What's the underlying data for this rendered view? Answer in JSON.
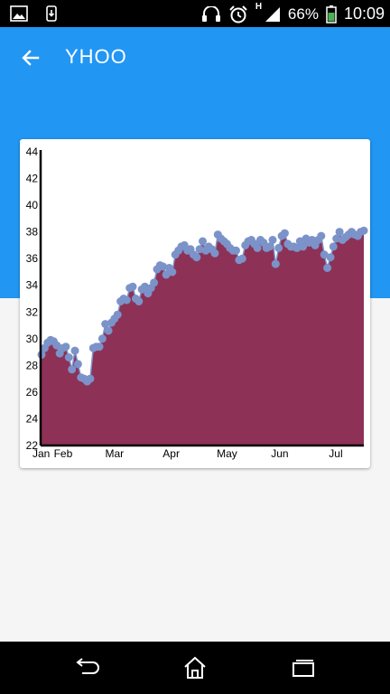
{
  "status": {
    "battery": "66%",
    "time": "10:09",
    "network_type": "H",
    "icons": [
      "picture-notification-icon",
      "download-notification-icon",
      "headset-icon",
      "alarm-icon",
      "signal-icon",
      "battery-icon"
    ]
  },
  "toolbar": {
    "title": "YHOO",
    "back_icon": "arrow-left-icon"
  },
  "colors": {
    "primary": "#2196f3",
    "area_fill": "#8e3156",
    "point_color": "#7b93c9",
    "status_bar": "#000000"
  },
  "chart_data": {
    "type": "area",
    "title": "",
    "xlabel": "",
    "ylabel": "",
    "ylim": [
      22,
      44
    ],
    "y_ticks": [
      22,
      24,
      26,
      28,
      30,
      32,
      34,
      36,
      38,
      40,
      42,
      44
    ],
    "x_tick_labels": [
      "Jan",
      "Feb",
      "Mar",
      "Apr",
      "May",
      "Jun",
      "Jul"
    ],
    "grid": false,
    "series": [
      {
        "values": [
          28.8,
          29.3,
          29.7,
          29.9,
          29.8,
          29.5,
          28.9,
          29.3,
          29.4,
          28.6,
          27.7,
          29.1,
          28.1,
          27.1,
          27.0,
          26.8,
          27.0,
          29.3,
          29.4,
          29.4,
          30.0,
          31.1,
          30.6,
          31.2,
          31.5,
          31.8,
          32.8,
          33.0,
          32.9,
          33.8,
          33.9,
          33.0,
          32.8,
          33.7,
          33.9,
          33.4,
          33.8,
          34.2,
          35.2,
          35.5,
          35.4,
          34.8,
          35.3,
          35.0,
          36.3,
          36.6,
          36.9,
          37.0,
          36.6,
          36.7,
          36.3,
          36.1,
          36.7,
          37.3,
          36.6,
          36.9,
          36.7,
          36.4,
          37.8,
          37.5,
          37.3,
          37.1,
          36.8,
          36.6,
          36.6,
          35.9,
          36.0,
          37.0,
          37.3,
          37.4,
          37.1,
          36.8,
          37.4,
          37.2,
          36.8,
          36.9,
          37.4,
          35.6,
          36.8,
          37.7,
          37.9,
          37.1,
          36.9,
          36.9,
          36.8,
          37.3,
          36.9,
          37.5,
          37.2,
          37.4,
          37.0,
          37.4,
          37.7,
          36.3,
          35.3,
          36.1,
          36.9,
          37.5,
          38.0,
          37.4,
          37.6,
          37.8,
          38.0,
          37.8,
          37.7,
          38.0,
          38.1
        ]
      }
    ]
  }
}
